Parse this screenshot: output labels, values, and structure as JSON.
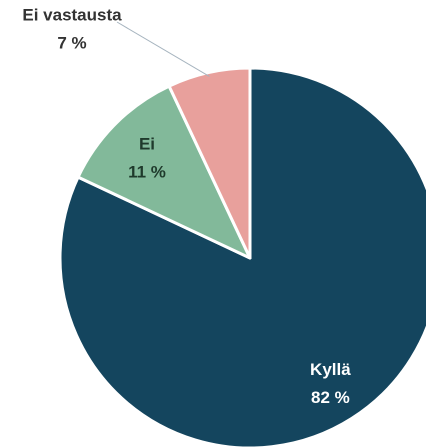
{
  "chart_data": {
    "type": "pie",
    "categories": [
      "Kyllä",
      "Ei",
      "Ei vastausta"
    ],
    "values": [
      82,
      11,
      7
    ],
    "value_labels": [
      "82 %",
      "11 %",
      "7 %"
    ],
    "colors": [
      "#14455e",
      "#82b99a",
      "#e8a09c"
    ],
    "label_colors": [
      "#ffffff",
      "#1f3a2c",
      "#333333"
    ]
  }
}
